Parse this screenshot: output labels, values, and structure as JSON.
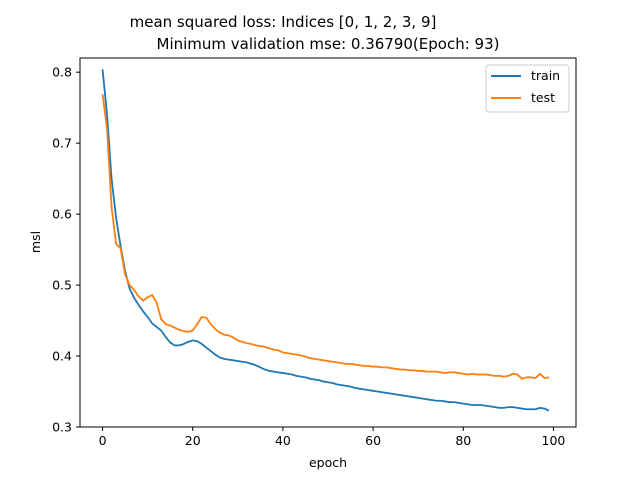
{
  "chart_data": {
    "type": "line",
    "title_line1": "mean squared loss: Indices [0, 1, 2, 3, 9]",
    "title_line2": "Minimum validation mse: 0.36790(Epoch: 93)",
    "xlabel": "epoch",
    "ylabel": "msl",
    "xlim": [
      -5,
      105
    ],
    "ylim": [
      0.3,
      0.82
    ],
    "x_ticks": [
      0,
      20,
      40,
      60,
      80,
      100
    ],
    "y_ticks": [
      0.3,
      0.4,
      0.5,
      0.6,
      0.7,
      0.8
    ],
    "grid": false,
    "legend_position": "top-right",
    "series": [
      {
        "name": "train",
        "color": "#1f77b4",
        "x": [
          0,
          1,
          2,
          3,
          4,
          5,
          6,
          7,
          8,
          9,
          10,
          11,
          12,
          13,
          14,
          15,
          16,
          17,
          18,
          19,
          20,
          21,
          22,
          23,
          24,
          25,
          26,
          27,
          28,
          29,
          30,
          31,
          32,
          33,
          34,
          35,
          36,
          37,
          38,
          39,
          40,
          41,
          42,
          43,
          44,
          45,
          46,
          47,
          48,
          49,
          50,
          51,
          52,
          53,
          54,
          55,
          56,
          57,
          58,
          59,
          60,
          61,
          62,
          63,
          64,
          65,
          66,
          67,
          68,
          69,
          70,
          71,
          72,
          73,
          74,
          75,
          76,
          77,
          78,
          79,
          80,
          81,
          82,
          83,
          84,
          85,
          86,
          87,
          88,
          89,
          90,
          91,
          92,
          93,
          94,
          95,
          96,
          97,
          98,
          99
        ],
        "values": [
          0.804,
          0.74,
          0.65,
          0.595,
          0.555,
          0.52,
          0.495,
          0.482,
          0.472,
          0.463,
          0.455,
          0.446,
          0.441,
          0.436,
          0.427,
          0.419,
          0.415,
          0.415,
          0.417,
          0.42,
          0.422,
          0.421,
          0.417,
          0.412,
          0.407,
          0.402,
          0.398,
          0.396,
          0.395,
          0.394,
          0.393,
          0.392,
          0.391,
          0.389,
          0.387,
          0.384,
          0.381,
          0.379,
          0.378,
          0.377,
          0.376,
          0.375,
          0.374,
          0.372,
          0.371,
          0.37,
          0.368,
          0.367,
          0.366,
          0.364,
          0.363,
          0.362,
          0.36,
          0.359,
          0.358,
          0.357,
          0.355,
          0.354,
          0.353,
          0.352,
          0.351,
          0.35,
          0.349,
          0.348,
          0.347,
          0.346,
          0.345,
          0.344,
          0.343,
          0.342,
          0.341,
          0.34,
          0.339,
          0.338,
          0.337,
          0.337,
          0.336,
          0.335,
          0.335,
          0.334,
          0.333,
          0.332,
          0.331,
          0.331,
          0.331,
          0.33,
          0.329,
          0.328,
          0.327,
          0.327,
          0.328,
          0.328,
          0.327,
          0.326,
          0.325,
          0.325,
          0.325,
          0.327,
          0.326,
          0.323
        ]
      },
      {
        "name": "test",
        "color": "#ff7f0e",
        "x": [
          0,
          1,
          2,
          3,
          4,
          5,
          6,
          7,
          8,
          9,
          10,
          11,
          12,
          13,
          14,
          15,
          16,
          17,
          18,
          19,
          20,
          21,
          22,
          23,
          24,
          25,
          26,
          27,
          28,
          29,
          30,
          31,
          32,
          33,
          34,
          35,
          36,
          37,
          38,
          39,
          40,
          41,
          42,
          43,
          44,
          45,
          46,
          47,
          48,
          49,
          50,
          51,
          52,
          53,
          54,
          55,
          56,
          57,
          58,
          59,
          60,
          61,
          62,
          63,
          64,
          65,
          66,
          67,
          68,
          69,
          70,
          71,
          72,
          73,
          74,
          75,
          76,
          77,
          78,
          79,
          80,
          81,
          82,
          83,
          84,
          85,
          86,
          87,
          88,
          89,
          90,
          91,
          92,
          93,
          94,
          95,
          96,
          97,
          98,
          99
        ],
        "values": [
          0.769,
          0.72,
          0.61,
          0.558,
          0.552,
          0.515,
          0.5,
          0.493,
          0.484,
          0.478,
          0.483,
          0.486,
          0.475,
          0.452,
          0.445,
          0.443,
          0.44,
          0.437,
          0.435,
          0.434,
          0.436,
          0.445,
          0.455,
          0.454,
          0.445,
          0.438,
          0.433,
          0.43,
          0.429,
          0.426,
          0.422,
          0.42,
          0.418,
          0.417,
          0.415,
          0.414,
          0.413,
          0.411,
          0.409,
          0.408,
          0.405,
          0.404,
          0.403,
          0.402,
          0.401,
          0.399,
          0.397,
          0.396,
          0.395,
          0.394,
          0.393,
          0.392,
          0.391,
          0.39,
          0.389,
          0.389,
          0.388,
          0.387,
          0.386,
          0.386,
          0.385,
          0.385,
          0.384,
          0.384,
          0.383,
          0.382,
          0.381,
          0.381,
          0.38,
          0.38,
          0.379,
          0.379,
          0.378,
          0.378,
          0.378,
          0.377,
          0.376,
          0.377,
          0.377,
          0.376,
          0.375,
          0.374,
          0.375,
          0.374,
          0.374,
          0.374,
          0.373,
          0.372,
          0.372,
          0.371,
          0.372,
          0.375,
          0.374,
          0.3679,
          0.37,
          0.37,
          0.369,
          0.375,
          0.369,
          0.37
        ]
      }
    ]
  }
}
